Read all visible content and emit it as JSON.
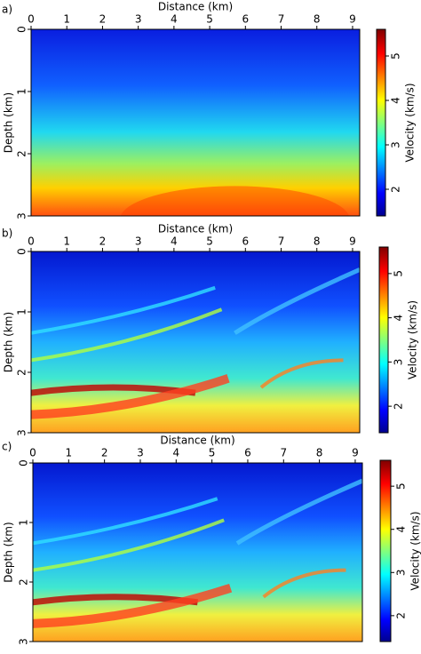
{
  "chart_data": [
    {
      "type": "heatmap",
      "panel_label": "a)",
      "xlabel": "Distance (km)",
      "ylabel": "Depth (km)",
      "xaxis_position": "top",
      "colormap": "jet",
      "xlim": [
        0,
        9.2
      ],
      "xticks": [
        0,
        1,
        2,
        3,
        4,
        5,
        6,
        7,
        8,
        9
      ],
      "ylim": [
        0,
        3
      ],
      "yticks": [
        0,
        1,
        2,
        3
      ],
      "colorbar": {
        "label": "Velocity (km/s)",
        "lim": [
          1.4,
          5.6
        ],
        "ticks": [
          2,
          3,
          4,
          5
        ]
      }
    },
    {
      "type": "heatmap",
      "panel_label": "b)",
      "xlabel": "Distance (km)",
      "ylabel": "Depth (km)",
      "xaxis_position": "top",
      "colormap": "jet",
      "xlim": [
        0,
        9.2
      ],
      "xticks": [
        0,
        1,
        2,
        3,
        4,
        5,
        6,
        7,
        8,
        9
      ],
      "ylim": [
        0,
        3
      ],
      "yticks": [
        0,
        1,
        2,
        3
      ],
      "colorbar": {
        "label": "Velocity (km/s)",
        "lim": [
          1.4,
          5.6
        ],
        "ticks": [
          2,
          3,
          4,
          5
        ]
      }
    },
    {
      "type": "heatmap",
      "panel_label": "c)",
      "xlabel": "Distance (km)",
      "ylabel": "Depth (km)",
      "xaxis_position": "top",
      "colormap": "jet",
      "xlim": [
        0,
        9.2
      ],
      "xticks": [
        0,
        1,
        2,
        3,
        4,
        5,
        6,
        7,
        8,
        9
      ],
      "ylim": [
        0,
        3
      ],
      "yticks": [
        0,
        1,
        2,
        3
      ],
      "colorbar": {
        "label": "Velocity (km/s)",
        "lim": [
          1.4,
          5.6
        ],
        "ticks": [
          2,
          3,
          4,
          5
        ]
      }
    }
  ]
}
